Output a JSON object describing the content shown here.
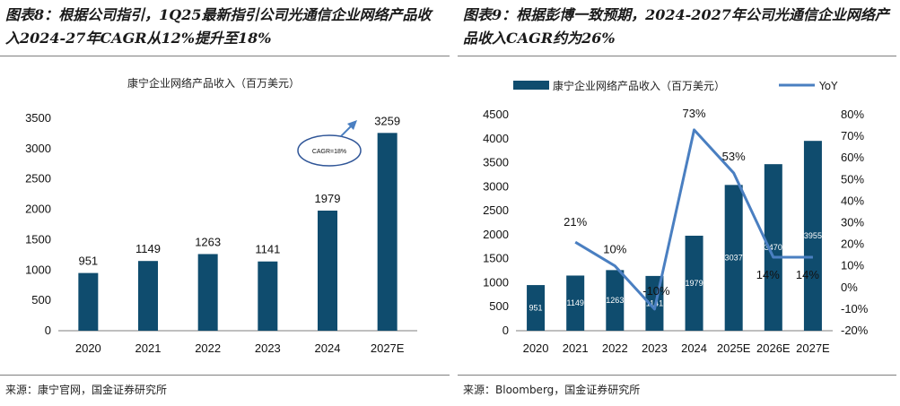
{
  "left": {
    "fig_title": "图表8：根据公司指引，1Q25最新指引公司光通信企业网络产品收入2024-27年CAGR从12%提升至18%",
    "source": "来源：康宁官网，国金证券研究所"
  },
  "right": {
    "fig_title": "图表9：根据彭博一致预期，2024-2027年公司光通信企业网络产品收入CAGR约为26%",
    "source": "来源：Bloomberg，国金证券研究所"
  },
  "colors": {
    "bar": "#0f4c6e",
    "line": "#4a7fc1",
    "ellipse": "#2f5597",
    "arrow": "#4a7fc1"
  },
  "chart_data": [
    {
      "type": "bar",
      "title": "康宁企业网络产品收入（百万美元）",
      "categories": [
        "2020",
        "2021",
        "2022",
        "2023",
        "2024",
        "2027E"
      ],
      "values": [
        951,
        1149,
        1263,
        1141,
        1979,
        3259
      ],
      "ylim": [
        0,
        3500
      ],
      "yticks": [
        0,
        500,
        1000,
        1500,
        2000,
        2500,
        3000,
        3500
      ],
      "annotation": "CAGR=18%",
      "xlabel": "",
      "ylabel": ""
    },
    {
      "type": "bar+line",
      "categories": [
        "2020",
        "2021",
        "2022",
        "2023",
        "2024",
        "2025E",
        "2026E",
        "2027E"
      ],
      "series": [
        {
          "name": "康宁企业网络产品收入（百万美元）",
          "type": "bar",
          "axis": "left",
          "values": [
            951,
            1149,
            1263,
            1141,
            1979,
            3037,
            3470,
            3955
          ]
        },
        {
          "name": "YoY",
          "type": "line",
          "axis": "right",
          "values": [
            null,
            21,
            10,
            -10,
            73,
            53,
            14,
            14
          ],
          "labels": [
            "",
            "21%",
            "10%",
            "-10%",
            "73%",
            "53%",
            "14%",
            "14%"
          ]
        }
      ],
      "ylim_left": [
        0,
        4500
      ],
      "yticks_left": [
        0,
        500,
        1000,
        1500,
        2000,
        2500,
        3000,
        3500,
        4000,
        4500
      ],
      "ylim_right": [
        -20,
        80
      ],
      "yticks_right": [
        "-20%",
        "-10%",
        "0%",
        "10%",
        "20%",
        "30%",
        "40%",
        "50%",
        "60%",
        "70%",
        "80%"
      ],
      "legend": "top"
    }
  ]
}
